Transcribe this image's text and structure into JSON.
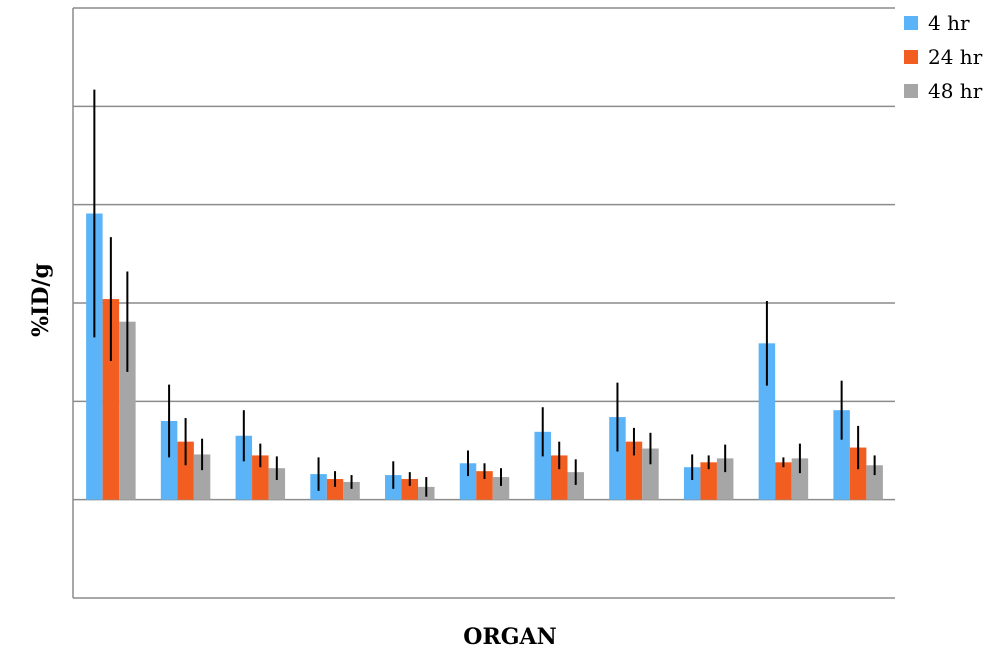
{
  "chart_data": {
    "type": "bar",
    "xlabel": "ORGAN",
    "ylabel": "%ID/g",
    "categories": [
      "",
      "",
      "",
      "",
      "",
      "",
      "",
      "",
      "",
      "",
      ""
    ],
    "ylim": [
      -1,
      5
    ],
    "grid": true,
    "legend_position": "top-right",
    "series": [
      {
        "name": "4 hr",
        "color": "#5bb4f7",
        "values": [
          2.91,
          0.8,
          0.65,
          0.26,
          0.25,
          0.37,
          0.69,
          0.84,
          0.33,
          1.59,
          0.91
        ],
        "errors": [
          1.26,
          0.37,
          0.26,
          0.17,
          0.14,
          0.13,
          0.25,
          0.35,
          0.13,
          0.43,
          0.3
        ]
      },
      {
        "name": "24 hr",
        "color": "#f25e20",
        "values": [
          2.04,
          0.59,
          0.45,
          0.21,
          0.21,
          0.29,
          0.45,
          0.59,
          0.38,
          0.38,
          0.53
        ],
        "errors": [
          0.63,
          0.24,
          0.12,
          0.08,
          0.07,
          0.08,
          0.14,
          0.14,
          0.07,
          0.05,
          0.22
        ]
      },
      {
        "name": "48 hr",
        "color": "#a6a6a6",
        "values": [
          1.81,
          0.46,
          0.32,
          0.18,
          0.13,
          0.23,
          0.28,
          0.52,
          0.42,
          0.42,
          0.35
        ],
        "errors": [
          0.51,
          0.16,
          0.12,
          0.07,
          0.1,
          0.09,
          0.13,
          0.16,
          0.14,
          0.15,
          0.1
        ]
      }
    ]
  }
}
